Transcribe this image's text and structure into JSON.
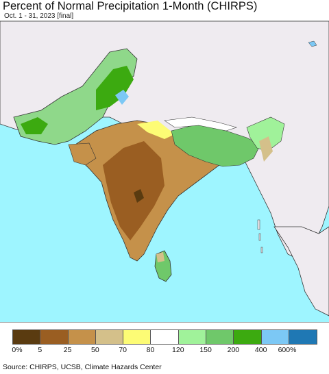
{
  "title": "Percent of Normal Precipitation 1-Month (CHIRPS)",
  "subtitle": "Oct. 1 - 31, 2023 [final]",
  "source": "Source: CHIRPS, UCSB, Climate Hazards Center",
  "colors": {
    "ocean": "#9ef5ff",
    "outside_land": "#efebf0",
    "border": "#333333"
  },
  "legend": {
    "colors": [
      "#5a3b10",
      "#9a5e22",
      "#c5914a",
      "#d4c08a",
      "#fdfc75",
      "#ffffff",
      "#a0f29a",
      "#6fc86a",
      "#3caa10",
      "#7cc8f5",
      "#1f78b4"
    ],
    "labels": [
      "0%",
      "5",
      "25",
      "50",
      "70",
      "80",
      "120",
      "150",
      "200",
      "400",
      "600%"
    ]
  }
}
